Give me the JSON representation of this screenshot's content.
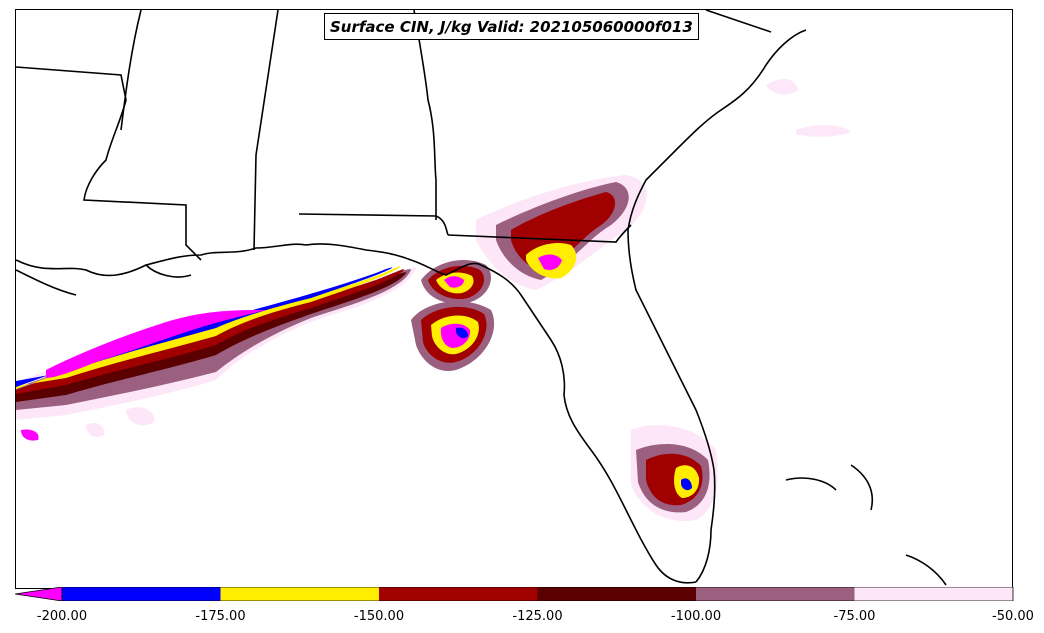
{
  "title": "Surface CIN, J/kg Valid: 202105060000f013",
  "colorbar": {
    "bins": [
      {
        "color": "#0000ff"
      },
      {
        "color": "#ffee00"
      },
      {
        "color": "#a00000"
      },
      {
        "color": "#5a0000"
      },
      {
        "color": "#9b5f80"
      },
      {
        "color": "#fde6f8"
      }
    ],
    "extend_color": "#ff00ff",
    "tick_labels": [
      "-200.00",
      "-175.00",
      "-150.00",
      "-125.00",
      "-100.00",
      "-75.00",
      "-50.00"
    ]
  },
  "map_features": [
    "state-borders",
    "coastlines",
    "CIN-shading"
  ]
}
